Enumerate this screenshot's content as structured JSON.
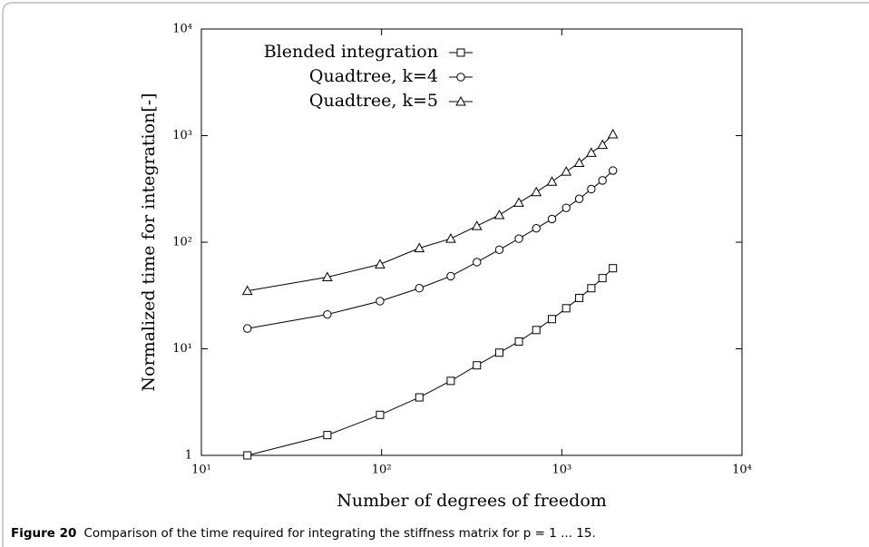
{
  "chart_data": {
    "type": "line",
    "xlabel": "Number of degrees of freedom",
    "ylabel": "Normalized time for integration[-]",
    "x": [
      18,
      50,
      98,
      162,
      242,
      338,
      450,
      578,
      722,
      882,
      1058,
      1250,
      1458,
      1682,
      1922
    ],
    "series": [
      {
        "name": "Blended integration",
        "color": "#000000",
        "marker": "square",
        "values": [
          1,
          1.55,
          2.4,
          3.5,
          5,
          7,
          9.2,
          11.7,
          15,
          19,
          24,
          30,
          37,
          46,
          57
        ]
      },
      {
        "name": "Quadtree, k=4",
        "color": "#000000",
        "marker": "circle",
        "values": [
          15.5,
          21,
          28,
          37,
          48,
          65,
          85,
          108,
          135,
          165,
          210,
          255,
          315,
          380,
          470
        ]
      },
      {
        "name": "Quadtree, k=5",
        "color": "#000000",
        "marker": "triangle",
        "values": [
          35,
          47,
          62,
          88,
          108,
          142,
          180,
          235,
          295,
          370,
          460,
          555,
          690,
          820,
          1030
        ]
      }
    ],
    "xscale": "log",
    "yscale": "log",
    "xlim": [
      10,
      10000
    ],
    "ylim": [
      1,
      10000
    ],
    "xticks": [
      {
        "value": 10,
        "label": "10¹"
      },
      {
        "value": 100,
        "label": "10²"
      },
      {
        "value": 1000,
        "label": "10³"
      },
      {
        "value": 10000,
        "label": "10⁴"
      }
    ],
    "yticks": [
      1,
      {
        "value": 10,
        "label": "10¹"
      },
      {
        "value": 100,
        "label": "10²"
      },
      {
        "value": 1000,
        "label": "10³"
      },
      {
        "value": 10000,
        "label": "10⁴"
      }
    ],
    "legend": "upper left"
  },
  "caption": {
    "label": "Figure 20",
    "text": "Comparison of the time required for integrating the stiffness matrix for p = 1 ... 15."
  }
}
